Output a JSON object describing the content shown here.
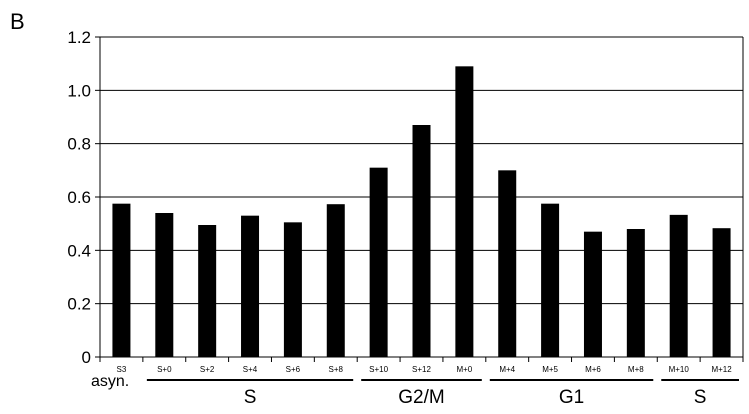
{
  "panel_label": "B",
  "chart_data": {
    "type": "bar",
    "categories": [
      "S3",
      "S+0",
      "S+2",
      "S+4",
      "S+6",
      "S+8",
      "S+10",
      "S+12",
      "M+0",
      "M+4",
      "M+5",
      "M+6",
      "M+8",
      "M+10",
      "M+12"
    ],
    "values": [
      0.575,
      0.54,
      0.495,
      0.53,
      0.505,
      0.573,
      0.71,
      0.87,
      1.09,
      0.7,
      0.575,
      0.47,
      0.48,
      0.533,
      0.483
    ],
    "ylim": [
      0,
      1.2
    ],
    "yticks": [
      "0",
      "0.2",
      "0.4",
      "0.6",
      "0.8",
      "1.0",
      "1.2"
    ],
    "grid": true,
    "bar_color": "#000000",
    "title": "",
    "xlabel": "",
    "ylabel": "",
    "asyn_label": "asyn.",
    "phase_groups": [
      {
        "label": "S",
        "start": 1,
        "end": 5
      },
      {
        "label": "G2/M",
        "start": 6,
        "end": 8
      },
      {
        "label": "G1",
        "start": 9,
        "end": 12
      },
      {
        "label": "S",
        "start": 13,
        "end": 14
      }
    ]
  }
}
